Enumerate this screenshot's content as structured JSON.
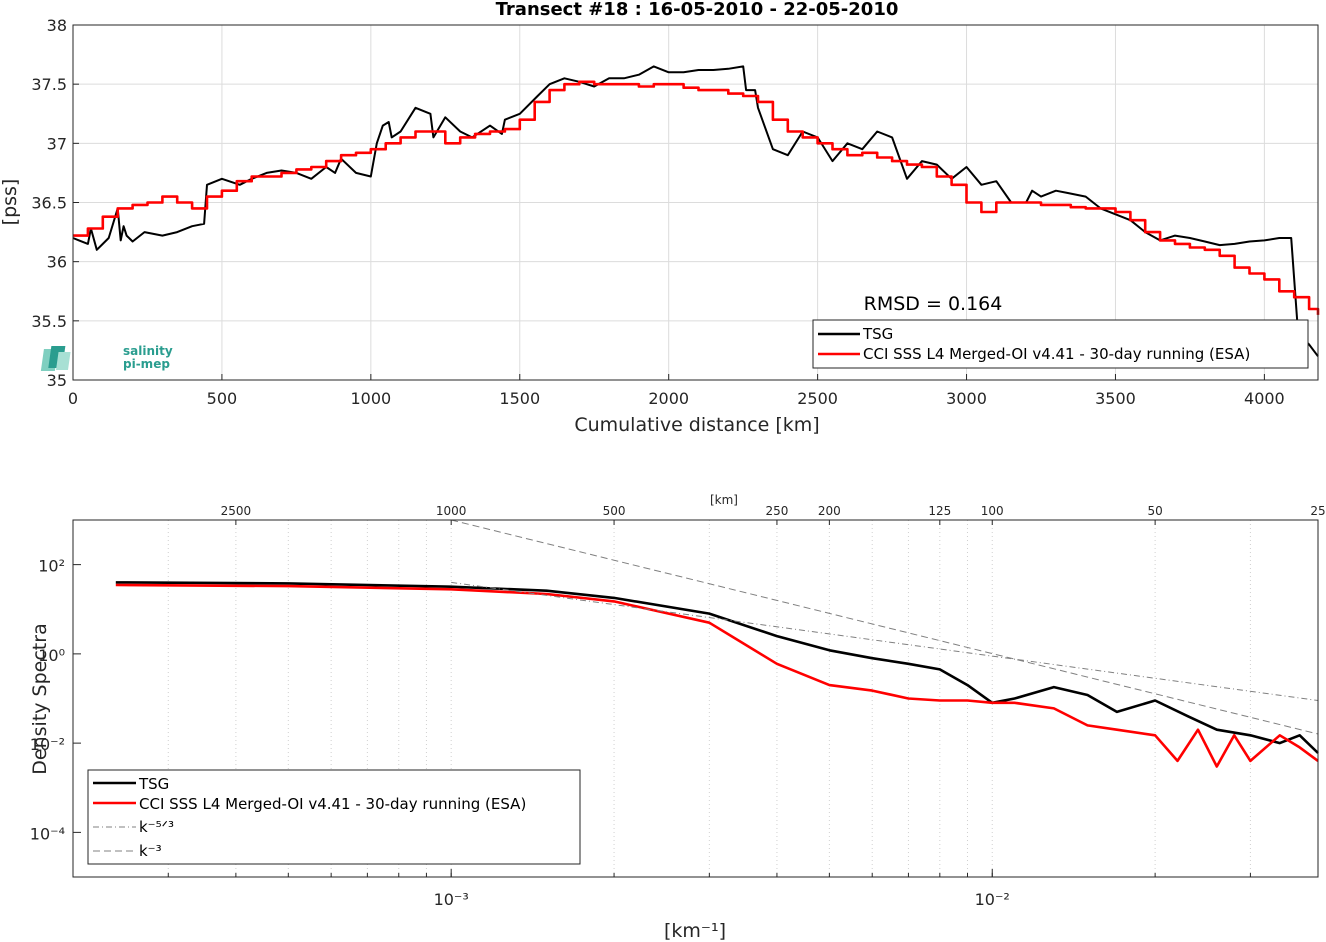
{
  "colors": {
    "tsg": "#000000",
    "cci": "#ff0000",
    "grid": "#dcdcdc",
    "axis": "#262626",
    "ref_lines": "#808080",
    "logo": "#2a9d8f"
  },
  "logo": {
    "line1": "salinity",
    "line2": "pi-mep"
  },
  "chart_data": [
    {
      "type": "line",
      "title": "Transect #18 : 16-05-2010 - 22-05-2010",
      "xlabel": "Cumulative distance [km]",
      "ylabel": "[pss]",
      "xlim": [
        0,
        4180
      ],
      "ylim": [
        35,
        38
      ],
      "xticks": [
        0,
        500,
        1000,
        1500,
        2000,
        2500,
        3000,
        3500,
        4000
      ],
      "xtick_labels": [
        "0",
        "500",
        "1000",
        "1500",
        "2000",
        "2500",
        "3000",
        "3500",
        "4000"
      ],
      "yticks": [
        35,
        35.5,
        36,
        36.5,
        37,
        37.5,
        38
      ],
      "ytick_labels": [
        "35",
        "35.5",
        "36",
        "36.5",
        "37",
        "37.5",
        "38"
      ],
      "grid": true,
      "legend_position": "bottom-right",
      "annotation": "RMSD = 0.164",
      "series": [
        {
          "name": "TSG",
          "color": "#000000",
          "x": [
            0,
            20,
            50,
            60,
            80,
            100,
            120,
            150,
            160,
            170,
            180,
            200,
            240,
            300,
            350,
            400,
            440,
            450,
            500,
            560,
            600,
            650,
            700,
            750,
            800,
            850,
            880,
            900,
            950,
            1000,
            1020,
            1040,
            1060,
            1070,
            1100,
            1150,
            1200,
            1210,
            1250,
            1300,
            1340,
            1400,
            1440,
            1450,
            1500,
            1560,
            1600,
            1650,
            1700,
            1750,
            1800,
            1850,
            1900,
            1950,
            2000,
            2050,
            2100,
            2150,
            2200,
            2250,
            2260,
            2290,
            2300,
            2350,
            2400,
            2450,
            2500,
            2550,
            2600,
            2650,
            2700,
            2750,
            2800,
            2850,
            2900,
            2950,
            3000,
            3050,
            3100,
            3150,
            3200,
            3220,
            3250,
            3300,
            3340,
            3400,
            3450,
            3500,
            3550,
            3600,
            3650,
            3700,
            3750,
            3800,
            3850,
            3900,
            3950,
            4000,
            4050,
            4090,
            4110,
            4130,
            4150,
            4180
          ],
          "y": [
            36.2,
            36.18,
            36.15,
            36.28,
            36.1,
            36.15,
            36.2,
            36.45,
            36.18,
            36.3,
            36.22,
            36.17,
            36.25,
            36.22,
            36.25,
            36.3,
            36.32,
            36.65,
            36.7,
            36.65,
            36.7,
            36.75,
            36.77,
            36.75,
            36.7,
            36.8,
            36.75,
            36.87,
            36.75,
            36.72,
            37.0,
            37.15,
            37.18,
            37.05,
            37.1,
            37.3,
            37.25,
            37.05,
            37.22,
            37.1,
            37.05,
            37.15,
            37.08,
            37.2,
            37.25,
            37.4,
            37.5,
            37.55,
            37.52,
            37.48,
            37.55,
            37.55,
            37.58,
            37.65,
            37.6,
            37.6,
            37.62,
            37.62,
            37.63,
            37.65,
            37.45,
            37.45,
            37.3,
            36.95,
            36.9,
            37.1,
            37.05,
            36.85,
            37.0,
            36.95,
            37.1,
            37.05,
            36.7,
            36.85,
            36.82,
            36.7,
            36.8,
            36.65,
            36.68,
            36.5,
            36.5,
            36.6,
            36.55,
            36.6,
            36.58,
            36.55,
            36.45,
            36.4,
            36.35,
            36.25,
            36.18,
            36.22,
            36.2,
            36.17,
            36.14,
            36.15,
            36.17,
            36.18,
            36.2,
            36.2,
            35.5,
            35.35,
            35.3,
            35.2
          ]
        },
        {
          "name": "CCI SSS L4 Merged-OI v4.41 - 30-day running (ESA)",
          "color": "#ff0000",
          "x": [
            0,
            50,
            100,
            150,
            200,
            250,
            300,
            350,
            400,
            450,
            500,
            550,
            600,
            650,
            700,
            750,
            800,
            850,
            900,
            950,
            1000,
            1050,
            1100,
            1150,
            1200,
            1250,
            1300,
            1350,
            1400,
            1450,
            1500,
            1550,
            1600,
            1650,
            1700,
            1750,
            1800,
            1850,
            1900,
            1950,
            2000,
            2050,
            2100,
            2150,
            2200,
            2250,
            2300,
            2350,
            2400,
            2450,
            2500,
            2550,
            2600,
            2650,
            2700,
            2750,
            2800,
            2850,
            2900,
            2950,
            3000,
            3050,
            3100,
            3150,
            3200,
            3250,
            3300,
            3350,
            3400,
            3450,
            3500,
            3550,
            3600,
            3650,
            3700,
            3750,
            3800,
            3850,
            3900,
            3950,
            4000,
            4050,
            4100,
            4150,
            4180
          ],
          "y": [
            36.22,
            36.28,
            36.38,
            36.45,
            36.48,
            36.5,
            36.55,
            36.5,
            36.45,
            36.55,
            36.6,
            36.68,
            36.72,
            36.72,
            36.75,
            36.78,
            36.8,
            36.85,
            36.9,
            36.92,
            36.95,
            37.0,
            37.05,
            37.1,
            37.1,
            37.0,
            37.05,
            37.08,
            37.1,
            37.12,
            37.2,
            37.35,
            37.45,
            37.5,
            37.52,
            37.5,
            37.5,
            37.5,
            37.48,
            37.5,
            37.5,
            37.47,
            37.45,
            37.45,
            37.42,
            37.4,
            37.35,
            37.2,
            37.1,
            37.05,
            37.0,
            36.95,
            36.9,
            36.92,
            36.88,
            36.85,
            36.82,
            36.8,
            36.72,
            36.65,
            36.5,
            36.42,
            36.5,
            36.5,
            36.5,
            36.48,
            36.48,
            36.46,
            36.45,
            36.45,
            36.42,
            36.35,
            36.25,
            36.18,
            36.15,
            36.12,
            36.1,
            36.05,
            35.95,
            35.9,
            35.85,
            35.75,
            35.7,
            35.6,
            35.55
          ]
        }
      ]
    },
    {
      "type": "line",
      "title": "",
      "xlabel": "[km⁻¹]",
      "ylabel": "Density Spectra",
      "xscale": "log",
      "yscale": "log",
      "xlim": [
        0.0002,
        0.04
      ],
      "ylim": [
        1e-05,
        1000
      ],
      "xtick_labels": [
        "10⁻³",
        "10⁻²"
      ],
      "ytick_labels": [
        "10²",
        "10⁰",
        "10⁻²",
        "10⁻⁴"
      ],
      "top_axis_label": "[km]",
      "top_ticks_km": [
        2500,
        1000,
        500,
        250,
        200,
        125,
        100,
        50,
        25
      ],
      "top_tick_labels": [
        "2500",
        "1000",
        "500",
        "250",
        "200",
        "125",
        "100",
        "50",
        "25"
      ],
      "grid": true,
      "legend_position": "bottom-left",
      "legend": [
        "TSG",
        "CCI SSS L4 Merged-OI v4.41 - 30-day running (ESA)",
        "k⁻⁵ᐟ³",
        "k⁻³"
      ],
      "series": [
        {
          "name": "TSG",
          "color": "#000000",
          "x": [
            0.00024,
            0.0005,
            0.001,
            0.0015,
            0.002,
            0.003,
            0.004,
            0.005,
            0.006,
            0.007,
            0.008,
            0.009,
            0.01,
            0.011,
            0.013,
            0.015,
            0.017,
            0.02,
            0.023,
            0.026,
            0.03,
            0.034,
            0.037,
            0.04
          ],
          "y": [
            40,
            38,
            32,
            26,
            18,
            8,
            2.5,
            1.2,
            0.8,
            0.6,
            0.45,
            0.2,
            0.08,
            0.1,
            0.18,
            0.12,
            0.05,
            0.09,
            0.04,
            0.02,
            0.015,
            0.01,
            0.015,
            0.006
          ]
        },
        {
          "name": "CCI SSS L4 Merged-OI v4.41 - 30-day running (ESA)",
          "color": "#ff0000",
          "x": [
            0.00024,
            0.0005,
            0.001,
            0.0015,
            0.002,
            0.003,
            0.004,
            0.005,
            0.006,
            0.007,
            0.008,
            0.009,
            0.01,
            0.011,
            0.013,
            0.015,
            0.017,
            0.02,
            0.022,
            0.024,
            0.026,
            0.028,
            0.03,
            0.034,
            0.037,
            0.04
          ],
          "y": [
            35,
            33,
            28,
            22,
            15,
            5,
            0.6,
            0.2,
            0.15,
            0.1,
            0.09,
            0.09,
            0.08,
            0.08,
            0.06,
            0.025,
            0.02,
            0.015,
            0.004,
            0.02,
            0.003,
            0.015,
            0.004,
            0.015,
            0.008,
            0.004
          ]
        },
        {
          "name": "k⁻⁵ᐟ³",
          "color": "#808080",
          "x": [
            0.001,
            0.04
          ],
          "y": [
            40,
            0.09
          ]
        },
        {
          "name": "k⁻³",
          "color": "#808080",
          "x": [
            0.001,
            0.04
          ],
          "y": [
            1000,
            0.016
          ]
        }
      ]
    }
  ]
}
